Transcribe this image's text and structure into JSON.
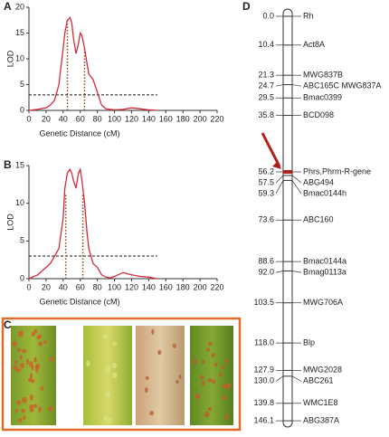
{
  "chart_data": [
    {
      "type": "line",
      "panel_label": "A",
      "x_label": "Genetic Distance (cM)",
      "y_label": "LOD",
      "x": [
        0,
        10,
        20,
        25,
        30,
        35,
        40,
        42,
        45,
        48,
        50,
        52,
        55,
        58,
        60,
        62,
        65,
        68,
        70,
        75,
        80,
        85,
        90,
        95,
        100,
        110,
        120,
        130,
        140,
        150
      ],
      "series": [
        {
          "color": "#d42a3a",
          "values": [
            0,
            0.2,
            0.5,
            1,
            2,
            5,
            12,
            15,
            17.5,
            18,
            17,
            14,
            11,
            13,
            15,
            14.5,
            12,
            9,
            7,
            6,
            3.5,
            1,
            0.3,
            0.2,
            0.1,
            0.2,
            0.5,
            0.3,
            0.1,
            0
          ]
        }
      ],
      "threshold": 3,
      "qtl_lines": [
        45,
        65
      ],
      "qtl_color": "#8a4a1a",
      "xlim": [
        0,
        220
      ],
      "xticks": [
        0,
        20,
        40,
        60,
        80,
        100,
        120,
        140,
        160,
        180,
        200,
        220
      ],
      "ylim": [
        0,
        20
      ],
      "yticks": [
        0,
        5,
        10,
        15,
        20
      ]
    },
    {
      "type": "line",
      "panel_label": "B",
      "x_label": "Genetic Distance (cM)",
      "y_label": "LOD",
      "x": [
        0,
        10,
        20,
        25,
        30,
        35,
        40,
        42,
        45,
        48,
        50,
        52,
        55,
        58,
        60,
        62,
        65,
        68,
        70,
        75,
        80,
        85,
        90,
        95,
        100,
        110,
        120,
        130,
        140,
        150
      ],
      "series": [
        {
          "color": "#d42a3a",
          "values": [
            0,
            0.5,
            1.5,
            2,
            3,
            4,
            8,
            12,
            14,
            14.5,
            14,
            13,
            12,
            14,
            14.5,
            13,
            10,
            6,
            4,
            2,
            1.5,
            0.5,
            0.2,
            0.1,
            0.3,
            0.8,
            0.5,
            0.3,
            0.2,
            0
          ]
        }
      ],
      "threshold": 3,
      "qtl_lines": [
        43,
        63
      ],
      "qtl_color": "#8a4a1a",
      "xlim": [
        0,
        220
      ],
      "xticks": [
        0,
        20,
        40,
        60,
        80,
        100,
        120,
        140,
        160,
        180,
        200,
        220
      ],
      "ylim": [
        0,
        15
      ],
      "yticks": [
        0,
        5,
        10,
        15
      ]
    }
  ],
  "leaf_panel": {
    "panel_label": "C"
  },
  "genetic_map": {
    "panel_label": "D",
    "highlight": 7,
    "highlight_color": "#b0201a",
    "positions": [
      {
        "value": 0,
        "label": "0.0"
      },
      10.4,
      21.3,
      24.7,
      29.5,
      35.8,
      56.2,
      56.2,
      57.5,
      59.3,
      73.6,
      88.6,
      {
        "value": 92,
        "label": "92.0"
      },
      103.5,
      {
        "value": 118,
        "label": "118.0"
      },
      127.9,
      {
        "value": 130,
        "label": "130.0"
      },
      139.8,
      146.1
    ],
    "markers": [
      "Rh",
      "Act8A",
      "MWG837B",
      "ABC165C MWG837A",
      "Bmac0399",
      "BCD098",
      null,
      "Phrs,Phrm-R-gene",
      "ABG494",
      "Bmac0144h",
      "ABC160",
      "Bmac0144a",
      "Bmag0113a",
      "MWG706A",
      "Blp",
      "MWG2028",
      "ABC261",
      "WMC1E8",
      "ABG387A"
    ]
  }
}
